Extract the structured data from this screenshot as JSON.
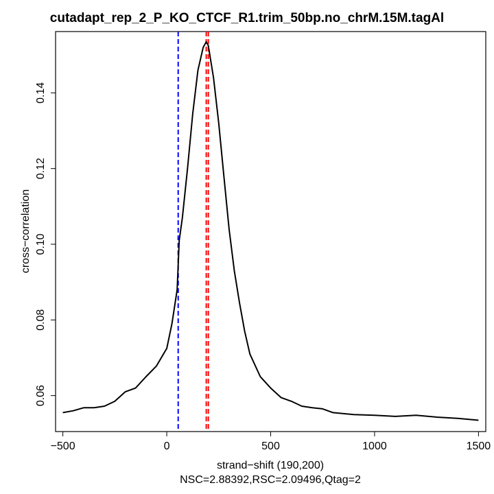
{
  "chart_data": {
    "type": "line",
    "title": "cutadapt_rep_2_P_KO_CTCF_R1.trim_50bp.no_chrM.15M.tagAl",
    "xlabel": "strand−shift (190,200)",
    "subtitle": "NSC=2.88392,RSC=2.09496,Qtag=2",
    "ylabel": "cross−correlation",
    "xlim": [
      -535,
      1535
    ],
    "ylim": [
      0.0505,
      0.1562
    ],
    "x_ticks": [
      -500,
      0,
      500,
      1000,
      1500
    ],
    "x_tick_labels": [
      "−500",
      "0",
      "500",
      "1000",
      "1500"
    ],
    "y_ticks": [
      0.06,
      0.08,
      0.1,
      0.12,
      0.14
    ],
    "y_tick_labels": [
      "0.06",
      "0.08",
      "0.10",
      "0.12",
      "0.14"
    ],
    "grid": false,
    "series": [
      {
        "color": "#000000",
        "x": [
          -500,
          -450,
          -400,
          -350,
          -300,
          -250,
          -200,
          -150,
          -100,
          -50,
          0,
          25,
          50,
          60,
          75,
          100,
          125,
          150,
          175,
          190,
          200,
          225,
          250,
          275,
          300,
          325,
          350,
          375,
          400,
          450,
          500,
          550,
          600,
          650,
          700,
          750,
          800,
          900,
          1000,
          1100,
          1200,
          1300,
          1400,
          1500
        ],
        "y": [
          0.0555,
          0.056,
          0.0568,
          0.0568,
          0.0572,
          0.0585,
          0.061,
          0.062,
          0.065,
          0.0678,
          0.0725,
          0.079,
          0.088,
          0.101,
          0.107,
          0.12,
          0.1345,
          0.146,
          0.152,
          0.1535,
          0.1525,
          0.144,
          0.132,
          0.118,
          0.104,
          0.093,
          0.0845,
          0.077,
          0.071,
          0.065,
          0.062,
          0.0595,
          0.0585,
          0.0572,
          0.0568,
          0.0565,
          0.0555,
          0.055,
          0.0548,
          0.0545,
          0.0548,
          0.0543,
          0.054,
          0.0535
        ]
      }
    ],
    "vlines": [
      {
        "x": 55,
        "color": "#0000ff",
        "style": "dashed"
      },
      {
        "x": 190,
        "color": "#ff0000",
        "style": "dashed"
      },
      {
        "x": 200,
        "color": "#ff0000",
        "style": "dashed"
      }
    ]
  }
}
